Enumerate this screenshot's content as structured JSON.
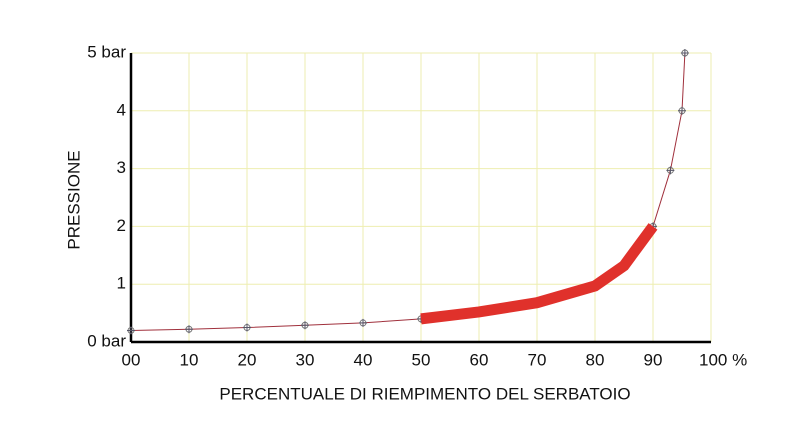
{
  "chart_data": {
    "type": "line",
    "x_label": "PERCENTUALE DI RIEMPIMENTO DEL SERBATOIO",
    "y_label": "PRESSIONE",
    "x": [
      0,
      10,
      20,
      30,
      40,
      50,
      60,
      70,
      80,
      85,
      90,
      93,
      95,
      95.5
    ],
    "series": [
      {
        "color": "#a0303c",
        "width": 1,
        "markers": true,
        "values": [
          0.2,
          0.22,
          0.25,
          0.29,
          0.33,
          0.4,
          0.52,
          0.68,
          0.97,
          1.32,
          2.0,
          2.97,
          4.0,
          5.0
        ]
      },
      {
        "color": "#e0312b",
        "width": 11,
        "markers": false,
        "values": [
          null,
          null,
          null,
          null,
          null,
          0.4,
          0.52,
          0.68,
          0.97,
          1.32,
          2.0,
          null,
          null,
          null
        ]
      }
    ],
    "xlim": [
      0,
      100
    ],
    "xticks": [
      {
        "value": 0,
        "label": "00"
      },
      10,
      20,
      30,
      40,
      50,
      60,
      70,
      80,
      90,
      {
        "value": 100,
        "label": "100  %"
      }
    ],
    "ylim": [
      0,
      5
    ],
    "yticks": [
      {
        "value": 0,
        "label": "0  bar"
      },
      1,
      2,
      3,
      4,
      {
        "value": 5,
        "label": "5 bar"
      }
    ],
    "grid": true,
    "grid_color": "#eeeeb0"
  }
}
